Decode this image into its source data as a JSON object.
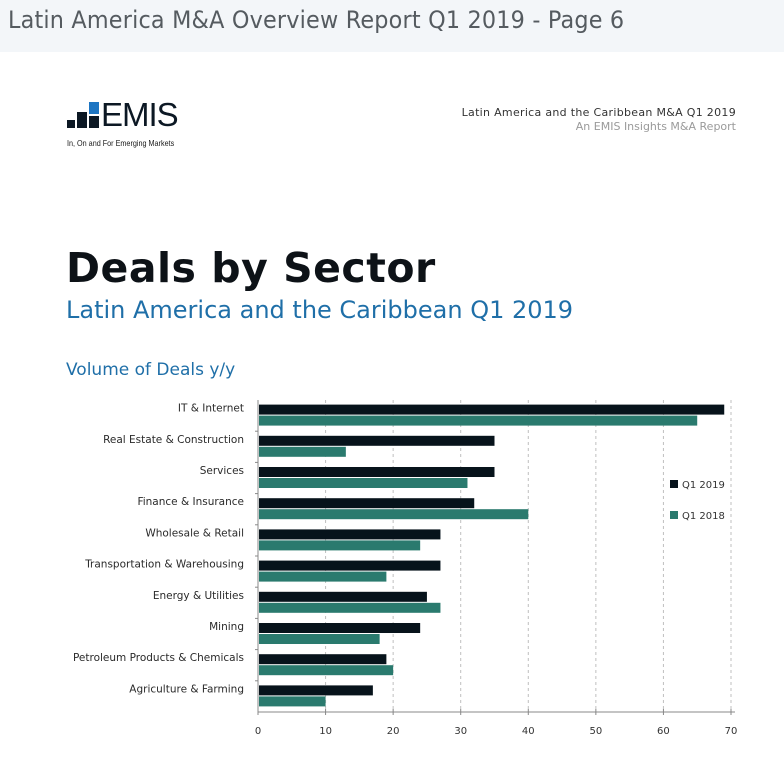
{
  "window": {
    "title": "Latin America M&A Overview Report Q1 2019 - Page 6"
  },
  "header": {
    "logo_text": "EMIS",
    "logo_tagline": "In, On and For Emerging Markets",
    "report_title": "Latin America and the Caribbean M&A Q1 2019",
    "report_subtitle": "An EMIS Insights M&A Report"
  },
  "page": {
    "title": "Deals by Sector",
    "subtitle": "Latin America and the Caribbean Q1 2019"
  },
  "colors": {
    "q1_2019": "#07131b",
    "q1_2018": "#2a7a6e",
    "accent_blue": "#1f6fa8",
    "logo_blue": "#1d75c2"
  },
  "chart_data": {
    "type": "bar",
    "orientation": "horizontal",
    "title": "Volume of Deals y/y",
    "xlabel": "",
    "ylabel": "",
    "categories": [
      "IT & Internet",
      "Real Estate & Construction",
      "Services",
      "Finance & Insurance",
      "Wholesale & Retail",
      "Transportation & Warehousing",
      "Energy & Utilities",
      "Mining",
      "Petroleum Products & Chemicals",
      "Agriculture & Farming"
    ],
    "series": [
      {
        "name": "Q1 2019",
        "values": [
          69,
          35,
          35,
          32,
          27,
          27,
          25,
          24,
          19,
          17
        ]
      },
      {
        "name": "Q1 2018",
        "values": [
          65,
          13,
          31,
          40,
          24,
          19,
          27,
          18,
          20,
          10
        ]
      }
    ],
    "xlim": [
      0,
      70
    ],
    "xticks": [
      "0",
      "10",
      "20",
      "30",
      "40",
      "50",
      "60",
      "70"
    ],
    "grid": "vertical dashed",
    "legend": "right"
  }
}
